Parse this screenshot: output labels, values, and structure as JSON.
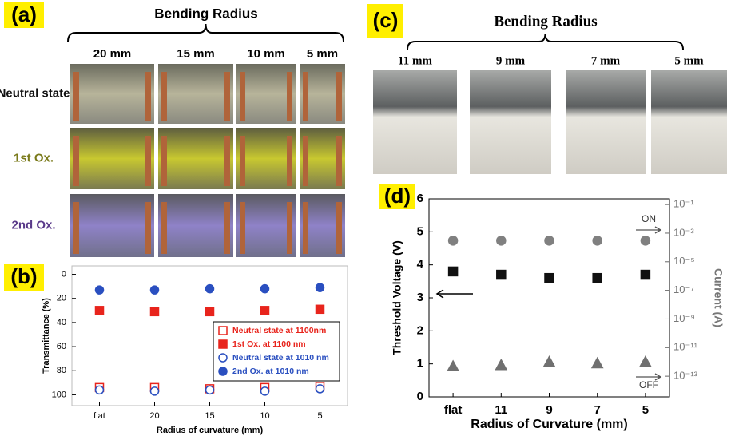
{
  "photo_panels": {
    "a": {
      "label": "(a)",
      "header": "Bending Radius",
      "columns": [
        "20 mm",
        "15 mm",
        "10 mm",
        "5 mm"
      ],
      "rows": [
        {
          "text": "Neutral state",
          "color": "#111111"
        },
        {
          "text": "1st Ox.",
          "color": "#7a7a1a"
        },
        {
          "text": "2nd Ox.",
          "color": "#5a3a8a"
        }
      ]
    },
    "c": {
      "label": "(c)",
      "header": "Bending Radius",
      "columns": [
        "11 mm",
        "9 mm",
        "7 mm",
        "5 mm"
      ]
    }
  },
  "chart_data": [
    {
      "type": "scatter",
      "label": "(b)",
      "x_label": "Radius of curvature (mm)",
      "y_label": "Transmittance (%)",
      "categories": [
        "flat",
        "20",
        "15",
        "10",
        "5"
      ],
      "ylim": [
        -7,
        109
      ],
      "y_inverted": true,
      "yticks": [
        0,
        20,
        40,
        60,
        80,
        100
      ],
      "legend": "right",
      "series": [
        {
          "name": "Neutral state at 1100nm",
          "color": "#e8241c",
          "marker": "square",
          "filled": false,
          "values": [
            94,
            94,
            95,
            94,
            93
          ]
        },
        {
          "name": "1st Ox. at 1100 nm",
          "color": "#e8241c",
          "marker": "square",
          "filled": true,
          "values": [
            30,
            31,
            31,
            30,
            29
          ]
        },
        {
          "name": "Neutral state at 1010 nm",
          "color": "#2a4fc0",
          "marker": "circle",
          "filled": false,
          "values": [
            96,
            97,
            96,
            97,
            95
          ]
        },
        {
          "name": "2nd Ox. at 1010 nm",
          "color": "#2a4fc0",
          "marker": "circle",
          "filled": true,
          "values": [
            13,
            13,
            12,
            12,
            11
          ]
        }
      ]
    },
    {
      "type": "scatter",
      "label": "(d)",
      "x_label": "Radius of Curvature (mm)",
      "y_label": "Threshold Voltage (V)",
      "y2_label": "Current (A)",
      "categories": [
        "flat",
        "11",
        "9",
        "7",
        "5"
      ],
      "ylim": [
        0,
        6
      ],
      "yticks": [
        0,
        1,
        2,
        3,
        4,
        5,
        6
      ],
      "y2lim": [
        3.6e-15,
        0.25
      ],
      "y2_log": true,
      "y2ticks": [
        {
          "value": 0.1,
          "label": "10⁻¹"
        },
        {
          "value": 0.001,
          "label": "10⁻³"
        },
        {
          "value": 1e-05,
          "label": "10⁻⁵"
        },
        {
          "value": 1e-07,
          "label": "10⁻⁷"
        },
        {
          "value": 1e-09,
          "label": "10⁻⁹"
        },
        {
          "value": 1e-11,
          "label": "10⁻¹¹"
        },
        {
          "value": 1e-13,
          "label": "10⁻¹³"
        }
      ],
      "annotations": [
        "ON",
        "OFF"
      ],
      "series": [
        {
          "color": "#111111",
          "marker": "square",
          "filled": true,
          "values": [
            3.8,
            3.7,
            3.6,
            3.6,
            3.7
          ]
        },
        {
          "color": "#808080",
          "marker": "circle",
          "filled": true,
          "axis": "y2",
          "values": [
            0.0003,
            0.0003,
            0.0003,
            0.0003,
            0.0003
          ]
        },
        {
          "color": "#707070",
          "marker": "triangle",
          "filled": true,
          "axis": "y2",
          "values": [
            5e-13,
            6e-13,
            1e-12,
            8e-13,
            1e-12
          ]
        }
      ]
    }
  ]
}
